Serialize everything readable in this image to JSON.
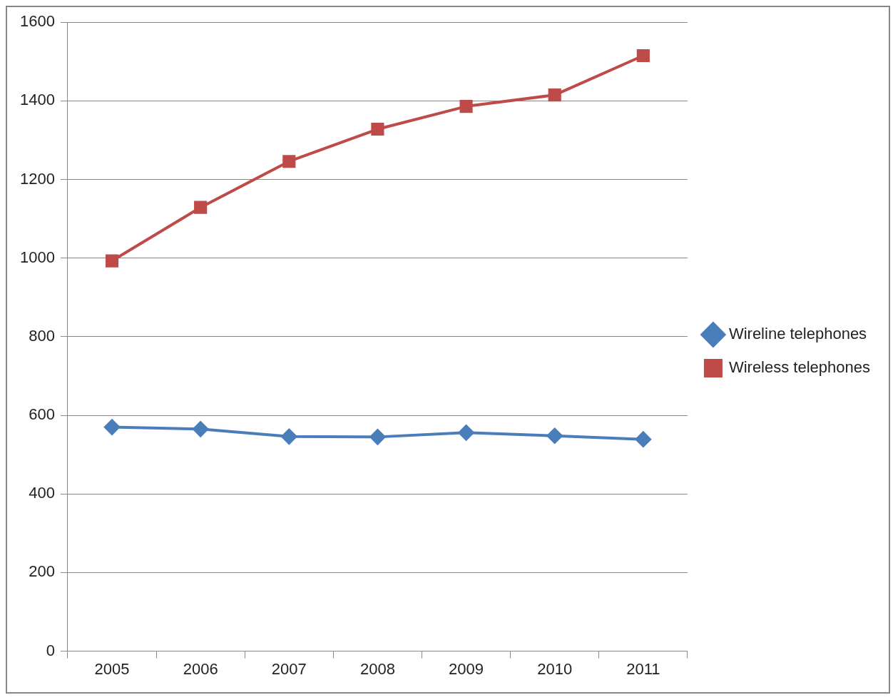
{
  "chart_data": {
    "type": "line",
    "categories": [
      "2005",
      "2006",
      "2007",
      "2008",
      "2009",
      "2010",
      "2011"
    ],
    "series": [
      {
        "name": "Wireline telephones",
        "color": "#4a7ebb",
        "marker": "diamond",
        "values": [
          570,
          565,
          546,
          545,
          556,
          548,
          539
        ]
      },
      {
        "name": "Wireless telephones",
        "color": "#be4b48",
        "marker": "square",
        "values": [
          993,
          1129,
          1246,
          1328,
          1386,
          1415,
          1515
        ]
      }
    ],
    "ylim": [
      0,
      1600
    ],
    "yticks": [
      0,
      200,
      400,
      600,
      800,
      1000,
      1200,
      1400,
      1600
    ],
    "grid": "y",
    "legend": "right"
  }
}
